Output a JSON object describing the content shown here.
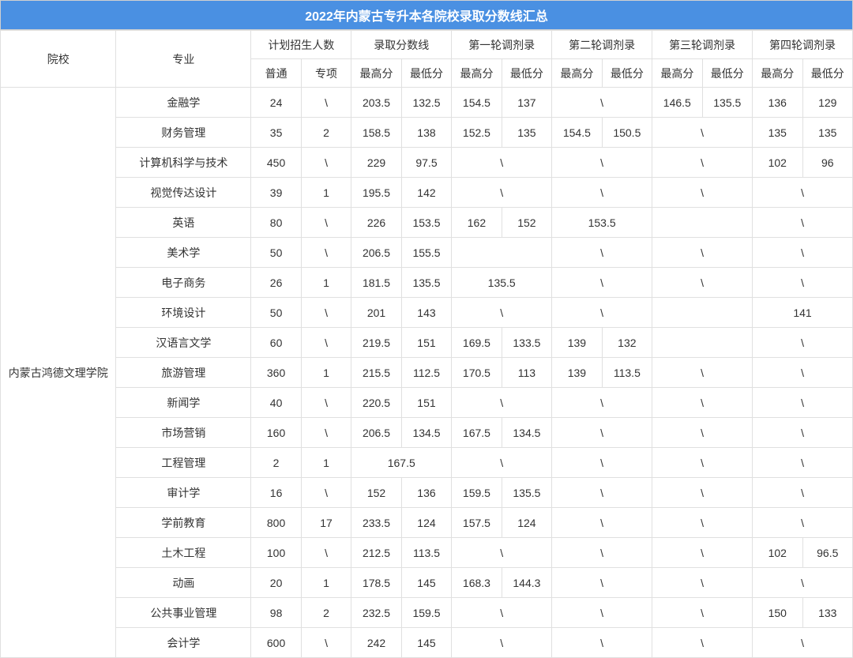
{
  "title": "2022年内蒙古专升本各院校录取分数线汇总",
  "colors": {
    "header_bg": "#4a90e2",
    "header_text": "#ffffff",
    "border": "#e0e0e0",
    "text": "#333333",
    "bg": "#ffffff"
  },
  "column_groups": [
    {
      "label": "院校",
      "subs": []
    },
    {
      "label": "专业",
      "subs": []
    },
    {
      "label": "计划招生人数",
      "subs": [
        "普通",
        "专项"
      ]
    },
    {
      "label": "录取分数线",
      "subs": [
        "最高分",
        "最低分"
      ]
    },
    {
      "label": "第一轮调剂录",
      "subs": [
        "最高分",
        "最低分"
      ]
    },
    {
      "label": "第二轮调剂录",
      "subs": [
        "最高分",
        "最低分"
      ]
    },
    {
      "label": "第三轮调剂录",
      "subs": [
        "最高分",
        "最低分"
      ]
    },
    {
      "label": "第四轮调剂录",
      "subs": [
        "最高分",
        "最低分"
      ]
    }
  ],
  "school": "内蒙古鸿德文理学院",
  "rows": [
    {
      "major": "金融学",
      "plan": [
        "24",
        "\\"
      ],
      "admit": [
        "203.5",
        "132.5"
      ],
      "r1": [
        "154.5",
        "137"
      ],
      "r2": [
        "\\",
        ""
      ],
      "r3": [
        "146.5",
        "135.5"
      ],
      "r4": [
        "136",
        "129"
      ]
    },
    {
      "major": "财务管理",
      "plan": [
        "35",
        "2"
      ],
      "admit": [
        "158.5",
        "138"
      ],
      "r1": [
        "152.5",
        "135"
      ],
      "r2": [
        "154.5",
        "150.5"
      ],
      "r3": [
        "\\",
        ""
      ],
      "r4": [
        "135",
        "135"
      ]
    },
    {
      "major": "计算机科学与技术",
      "plan": [
        "450",
        "\\"
      ],
      "admit": [
        "229",
        "97.5"
      ],
      "r1": [
        "\\",
        ""
      ],
      "r2": [
        "\\",
        ""
      ],
      "r3": [
        "\\",
        ""
      ],
      "r4": [
        "102",
        "96"
      ]
    },
    {
      "major": "视觉传达设计",
      "plan": [
        "39",
        "1"
      ],
      "admit": [
        "195.5",
        "142"
      ],
      "r1": [
        "\\",
        ""
      ],
      "r2": [
        "\\",
        ""
      ],
      "r3": [
        "\\",
        ""
      ],
      "r4": [
        "\\",
        ""
      ]
    },
    {
      "major": "英语",
      "plan": [
        "80",
        "\\"
      ],
      "admit": [
        "226",
        "153.5"
      ],
      "r1": [
        "162",
        "152"
      ],
      "r2": [
        "153.5",
        ""
      ],
      "r3": [
        "",
        ""
      ],
      "r4": [
        "\\",
        ""
      ]
    },
    {
      "major": "美术学",
      "plan": [
        "50",
        "\\"
      ],
      "admit": [
        "206.5",
        "155.5"
      ],
      "r1": [
        "",
        ""
      ],
      "r2": [
        "\\",
        ""
      ],
      "r3": [
        "\\",
        ""
      ],
      "r4": [
        "\\",
        ""
      ]
    },
    {
      "major": "电子商务",
      "plan": [
        "26",
        "1"
      ],
      "admit": [
        "181.5",
        "135.5"
      ],
      "r1": [
        "135.5",
        ""
      ],
      "r2": [
        "\\",
        ""
      ],
      "r3": [
        "\\",
        ""
      ],
      "r4": [
        "\\",
        ""
      ]
    },
    {
      "major": "环境设计",
      "plan": [
        "50",
        "\\"
      ],
      "admit": [
        "201",
        "143"
      ],
      "r1": [
        "\\",
        ""
      ],
      "r2": [
        "\\",
        ""
      ],
      "r3": [
        "",
        ""
      ],
      "r4": [
        "141",
        ""
      ]
    },
    {
      "major": "汉语言文学",
      "plan": [
        "60",
        "\\"
      ],
      "admit": [
        "219.5",
        "151"
      ],
      "r1": [
        "169.5",
        "133.5"
      ],
      "r2": [
        "139",
        "132"
      ],
      "r3": [
        "",
        ""
      ],
      "r4": [
        "\\",
        ""
      ]
    },
    {
      "major": "旅游管理",
      "plan": [
        "360",
        "1"
      ],
      "admit": [
        "215.5",
        "112.5"
      ],
      "r1": [
        "170.5",
        "113"
      ],
      "r2": [
        "139",
        "113.5"
      ],
      "r3": [
        "\\",
        ""
      ],
      "r4": [
        "\\",
        ""
      ]
    },
    {
      "major": "新闻学",
      "plan": [
        "40",
        "\\"
      ],
      "admit": [
        "220.5",
        "151"
      ],
      "r1": [
        "\\",
        ""
      ],
      "r2": [
        "\\",
        ""
      ],
      "r3": [
        "\\",
        ""
      ],
      "r4": [
        "\\",
        ""
      ]
    },
    {
      "major": "市场营销",
      "plan": [
        "160",
        "\\"
      ],
      "admit": [
        "206.5",
        "134.5"
      ],
      "r1": [
        "167.5",
        "134.5"
      ],
      "r2": [
        "\\",
        ""
      ],
      "r3": [
        "\\",
        ""
      ],
      "r4": [
        "\\",
        ""
      ]
    },
    {
      "major": "工程管理",
      "plan": [
        "2",
        "1"
      ],
      "admit": [
        "167.5",
        ""
      ],
      "r1": [
        "\\",
        ""
      ],
      "r2": [
        "\\",
        ""
      ],
      "r3": [
        "\\",
        ""
      ],
      "r4": [
        "\\",
        ""
      ]
    },
    {
      "major": "审计学",
      "plan": [
        "16",
        "\\"
      ],
      "admit": [
        "152",
        "136"
      ],
      "r1": [
        "159.5",
        "135.5"
      ],
      "r2": [
        "\\",
        ""
      ],
      "r3": [
        "\\",
        ""
      ],
      "r4": [
        "\\",
        ""
      ]
    },
    {
      "major": "学前教育",
      "plan": [
        "800",
        "17"
      ],
      "admit": [
        "233.5",
        "124"
      ],
      "r1": [
        "157.5",
        "124"
      ],
      "r2": [
        "\\",
        ""
      ],
      "r3": [
        "\\",
        ""
      ],
      "r4": [
        "\\",
        ""
      ]
    },
    {
      "major": "土木工程",
      "plan": [
        "100",
        "\\"
      ],
      "admit": [
        "212.5",
        "113.5"
      ],
      "r1": [
        "\\",
        ""
      ],
      "r2": [
        "\\",
        ""
      ],
      "r3": [
        "\\",
        ""
      ],
      "r4": [
        "102",
        "96.5"
      ]
    },
    {
      "major": "动画",
      "plan": [
        "20",
        "1"
      ],
      "admit": [
        "178.5",
        "145"
      ],
      "r1": [
        "168.3",
        "144.3"
      ],
      "r2": [
        "\\",
        ""
      ],
      "r3": [
        "\\",
        ""
      ],
      "r4": [
        "\\",
        ""
      ]
    },
    {
      "major": "公共事业管理",
      "plan": [
        "98",
        "2"
      ],
      "admit": [
        "232.5",
        "159.5"
      ],
      "r1": [
        "\\",
        ""
      ],
      "r2": [
        "\\",
        ""
      ],
      "r3": [
        "\\",
        ""
      ],
      "r4": [
        "150",
        "133"
      ]
    },
    {
      "major": "会计学",
      "plan": [
        "600",
        "\\"
      ],
      "admit": [
        "242",
        "145"
      ],
      "r1": [
        "\\",
        ""
      ],
      "r2": [
        "\\",
        ""
      ],
      "r3": [
        "\\",
        ""
      ],
      "r4": [
        "\\",
        ""
      ]
    }
  ]
}
